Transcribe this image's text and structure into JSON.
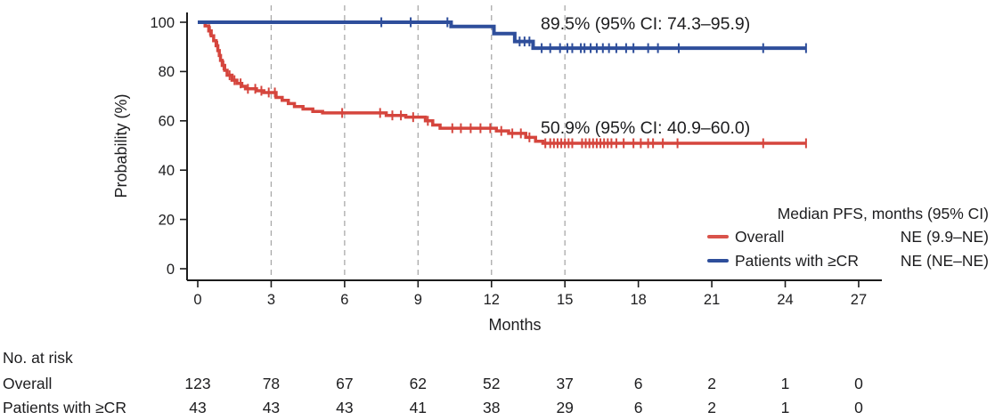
{
  "colors": {
    "red": "#d5453d",
    "blue": "#2e4e9b",
    "red_text": "#d9534b",
    "blue_text": "#3d5aa5",
    "grid": "#a9a9a9",
    "axis": "#1c1c1c",
    "text": "#1d1d1f"
  },
  "chart_data": {
    "type": "line",
    "subtype": "kaplan-meier-step",
    "title": "",
    "xlabel": "Months",
    "ylabel": "Probability (%)",
    "xlim": [
      0,
      27
    ],
    "ylim": [
      0,
      100
    ],
    "x_ticks": [
      0,
      3,
      6,
      9,
      12,
      15,
      18,
      21,
      24,
      27
    ],
    "y_ticks": [
      0,
      20,
      40,
      60,
      80,
      100
    ],
    "gridlines_at": [
      3,
      6,
      9,
      12,
      15
    ],
    "grid_style": "dashed",
    "legend_position": "lower right",
    "series": [
      {
        "name": "Overall",
        "color_key": "red",
        "end_month": 24.85,
        "final_value_pct": 50.9,
        "steps": [
          [
            0,
            100
          ],
          [
            0.3,
            98.5
          ],
          [
            0.45,
            96.5
          ],
          [
            0.55,
            94.5
          ],
          [
            0.65,
            92.5
          ],
          [
            0.75,
            90.5
          ],
          [
            0.82,
            88.5
          ],
          [
            0.88,
            86.5
          ],
          [
            0.93,
            84.5
          ],
          [
            1.0,
            82.5
          ],
          [
            1.1,
            80.5
          ],
          [
            1.2,
            78.5
          ],
          [
            1.4,
            76.5
          ],
          [
            1.6,
            75.2
          ],
          [
            1.8,
            74.0
          ],
          [
            1.95,
            73.0
          ],
          [
            2.4,
            72.2
          ],
          [
            2.7,
            71.5
          ],
          [
            3.2,
            69.5
          ],
          [
            3.45,
            68.3
          ],
          [
            3.7,
            67.0
          ],
          [
            3.95,
            65.8
          ],
          [
            4.3,
            64.8
          ],
          [
            4.7,
            63.8
          ],
          [
            5.1,
            63.2
          ],
          [
            7.7,
            62.2
          ],
          [
            8.5,
            61.5
          ],
          [
            9.3,
            60.0
          ],
          [
            9.6,
            58.3
          ],
          [
            9.9,
            57.0
          ],
          [
            12.2,
            55.9
          ],
          [
            12.7,
            54.9
          ],
          [
            13.4,
            53.3
          ],
          [
            13.8,
            51.7
          ],
          [
            14.1,
            50.9
          ]
        ],
        "censors": [
          0.5,
          0.8,
          1.05,
          1.3,
          1.5,
          1.75,
          2.05,
          2.35,
          2.6,
          2.9,
          3.15,
          5.9,
          7.45,
          7.95,
          8.3,
          8.8,
          9.4,
          10.4,
          10.75,
          11.15,
          11.55,
          11.95,
          12.4,
          12.85,
          13.2,
          13.55,
          14.2,
          14.4,
          14.55,
          14.7,
          14.85,
          15.0,
          15.15,
          15.3,
          15.7,
          15.85,
          16.0,
          16.15,
          16.3,
          16.45,
          16.6,
          16.75,
          16.9,
          17.1,
          17.4,
          17.8,
          18.1,
          18.4,
          18.6,
          19.0,
          19.6,
          23.1,
          24.85
        ]
      },
      {
        "name": "Patients with ≥CR",
        "color_key": "blue",
        "end_month": 24.85,
        "final_value_pct": 89.5,
        "steps": [
          [
            0,
            100
          ],
          [
            10.35,
            98.3
          ],
          [
            12.1,
            95.4
          ],
          [
            12.95,
            92.2
          ],
          [
            13.7,
            89.5
          ]
        ],
        "censors": [
          7.5,
          8.7,
          10.2,
          13.15,
          13.35,
          13.55,
          14.05,
          14.4,
          14.8,
          15.1,
          15.3,
          15.65,
          15.8,
          16.05,
          16.3,
          16.55,
          16.8,
          17.1,
          17.5,
          17.8,
          18.4,
          18.8,
          19.65,
          23.1,
          24.85
        ]
      }
    ],
    "annotations": {
      "cr": {
        "text": "89.5% (95% CI: 74.3–95.9)",
        "series": "Patients with ≥CR"
      },
      "overall": {
        "text": "50.9% (95% CI: 40.9–60.0)",
        "series": "Overall"
      }
    },
    "legend": {
      "title": "Median PFS, months (95% CI)",
      "rows": [
        {
          "label": "Overall",
          "value": "NE (9.9–NE)",
          "color_key": "red"
        },
        {
          "label": "Patients with ≥CR",
          "value": "NE (NE–NE)",
          "color_key": "blue"
        }
      ]
    },
    "risk_table": {
      "heading": "No. at risk",
      "months": [
        0,
        3,
        6,
        9,
        12,
        15,
        18,
        21,
        24,
        27
      ],
      "rows": [
        {
          "label": "Overall",
          "counts": [
            123,
            78,
            67,
            62,
            52,
            37,
            6,
            2,
            1,
            0
          ]
        },
        {
          "label": "Patients with ≥CR",
          "counts": [
            43,
            43,
            43,
            41,
            38,
            29,
            6,
            2,
            1,
            0
          ]
        }
      ]
    }
  }
}
